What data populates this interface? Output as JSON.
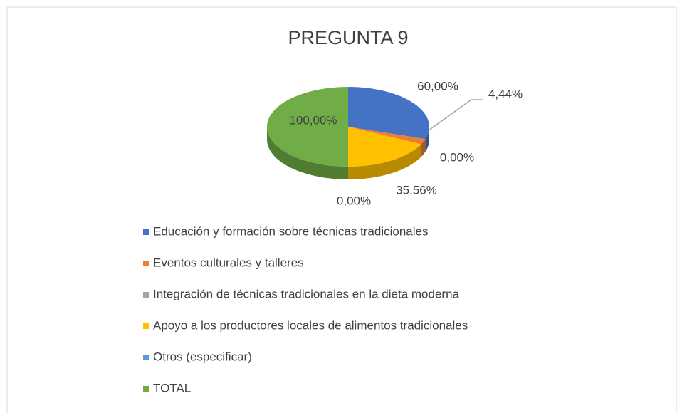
{
  "chart_data": {
    "type": "pie",
    "title": "PREGUNTA 9",
    "categories": [
      "Educación y formación sobre técnicas tradicionales",
      "Eventos culturales y talleres",
      "Integración de técnicas tradicionales en la dieta moderna",
      "Apoyo a los productores locales de alimentos tradicionales",
      "Otros (especificar)",
      "TOTAL"
    ],
    "values": [
      60,
      4.44,
      0,
      35.56,
      0,
      100
    ],
    "value_labels": [
      "60,00%",
      "4,44%",
      "0,00%",
      "35,56%",
      "0,00%",
      "100,00%"
    ],
    "colors": [
      "#4472c4",
      "#ed7d31",
      "#a5a5a5",
      "#ffc000",
      "#5b9bd5",
      "#70ad47"
    ],
    "legend": "bottom"
  }
}
